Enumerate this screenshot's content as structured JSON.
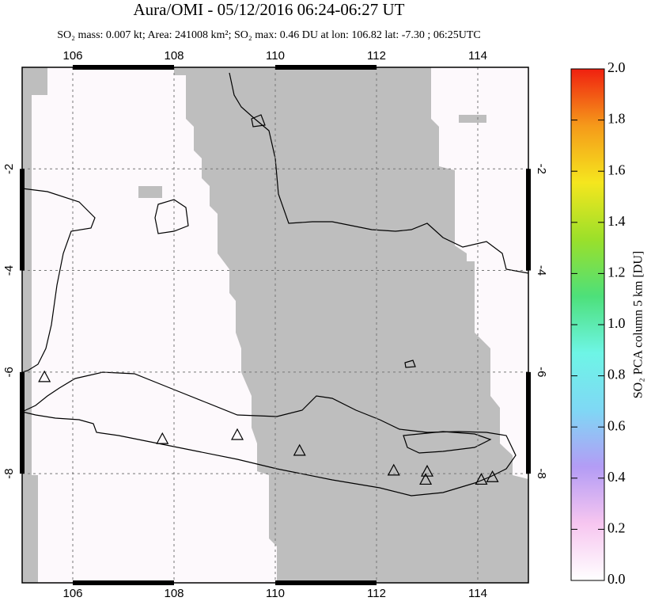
{
  "chart_data": {
    "type": "map",
    "title": "Aura/OMI - 05/12/2016 06:24-06:27 UT",
    "subtitle": "SO₂ mass: 0.007 kt; Area: 241008 km²; SO₂ max: 0.46 DU at lon: 106.82 lat: -7.30 ; 06:25UTC",
    "xlim": [
      105,
      115
    ],
    "ylim": [
      -10.15,
      0
    ],
    "xticks": [
      106,
      108,
      110,
      112,
      114
    ],
    "yticks": [
      -2,
      -4,
      -6,
      -8
    ],
    "grid": true,
    "volcanoes": {
      "lon": [
        105.44,
        107.77,
        109.25,
        110.48,
        112.34,
        113.0,
        112.97,
        114.07,
        114.29
      ],
      "lat": [
        -6.11,
        -7.33,
        -7.25,
        -7.56,
        -7.95,
        -7.97,
        -8.13,
        -8.13,
        -8.08
      ]
    },
    "colorbar": {
      "label": "SO₂ PCA column 5 km [DU]",
      "lim": [
        0,
        2
      ],
      "colors": [
        "#ffffff",
        "#f7c6f0",
        "#b39cf5",
        "#7fd8f5",
        "#6ef5e6",
        "#4de07a",
        "#9be02a",
        "#f5e61e",
        "#f59a1a",
        "#f02010"
      ],
      "ticks": [
        {
          "value": 0,
          "label": "0.0"
        },
        {
          "value": 0.2,
          "label": "0.2"
        },
        {
          "value": 0.4,
          "label": "0.4"
        },
        {
          "value": 0.6,
          "label": "0.6"
        },
        {
          "value": 0.8,
          "label": "0.8"
        },
        {
          "value": 1,
          "label": "1.0"
        },
        {
          "value": 1.2,
          "label": "1.2"
        },
        {
          "value": 1.4,
          "label": "1.4"
        },
        {
          "value": 1.6,
          "label": "1.6"
        },
        {
          "value": 1.8,
          "label": "1.8"
        },
        {
          "value": 2,
          "label": "2.0"
        }
      ]
    }
  }
}
